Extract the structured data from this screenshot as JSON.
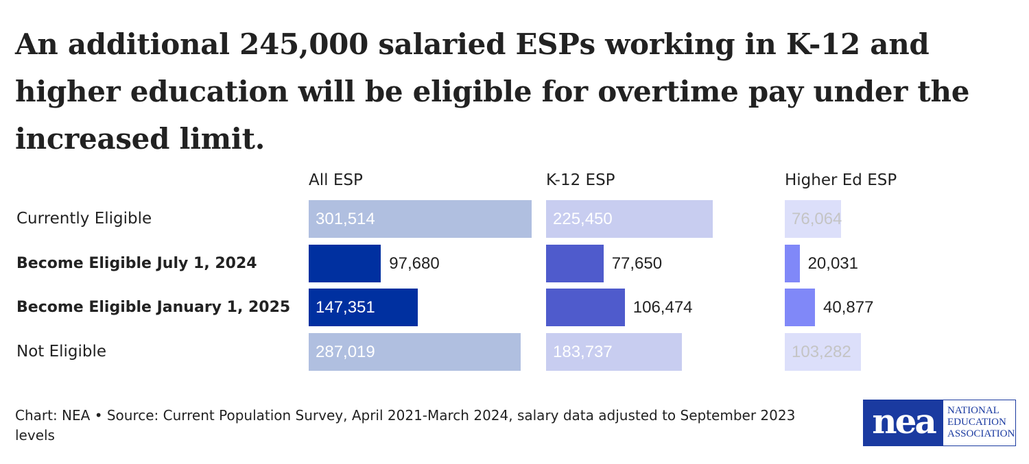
{
  "chart_data": {
    "type": "bar",
    "title": "An additional 245,000 salaried ESPs working in K-12 and higher education will be eligible for overtime pay under the increased limit.",
    "categories": [
      "Currently Eligible",
      "Become Eligible July 1, 2024",
      "Become Eligible January 1, 2025",
      "Not Eligible"
    ],
    "bold_categories": [
      false,
      true,
      true,
      false
    ],
    "series": [
      {
        "name": "All ESP",
        "values": [
          301514,
          97680,
          147351,
          287019
        ],
        "labels": [
          "301,514",
          "97,680",
          "147,351",
          "287,019"
        ],
        "light_color": "#b0bfe0",
        "dark_color": "#0030a0",
        "light_text_color": "#ffffff"
      },
      {
        "name": "K-12 ESP",
        "values": [
          225450,
          77650,
          106474,
          183737
        ],
        "labels": [
          "225,450",
          "77,650",
          "106,474",
          "183,737"
        ],
        "light_color": "#c8cdf0",
        "dark_color": "#4f5bcc",
        "light_text_color": "#ffffff"
      },
      {
        "name": "Higher Ed ESP",
        "values": [
          76064,
          20031,
          40877,
          103282
        ],
        "labels": [
          "76,064",
          "20,031",
          "40,877",
          "103,282"
        ],
        "light_color": "#dcdffa",
        "dark_color": "#8088f8",
        "light_text_color": "#c4c4c4"
      }
    ],
    "orientation": "horizontal",
    "grid": false
  },
  "footer": {
    "source": "Chart: NEA • Source: Current Population Survey, April 2021-March 2024, salary data adjusted to September 2023 levels"
  },
  "logo": {
    "mark": "nea",
    "text": "NATIONAL EDUCATION ASSOCIATION"
  }
}
